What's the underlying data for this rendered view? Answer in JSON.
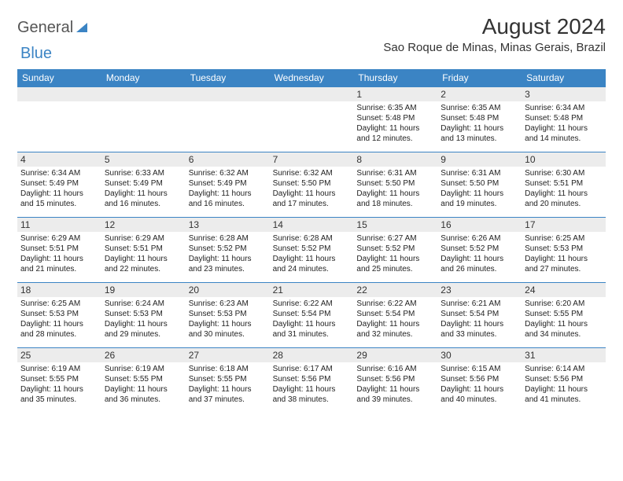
{
  "brand": {
    "word1": "General",
    "word2": "Blue"
  },
  "title": "August 2024",
  "subtitle": "Sao Roque de Minas, Minas Gerais, Brazil",
  "colors": {
    "accent": "#3b84c4",
    "daybg": "#ececec"
  },
  "weekdays": [
    "Sunday",
    "Monday",
    "Tuesday",
    "Wednesday",
    "Thursday",
    "Friday",
    "Saturday"
  ],
  "weeks": [
    [
      null,
      null,
      null,
      null,
      {
        "n": "1",
        "sr": "Sunrise: 6:35 AM",
        "ss": "Sunset: 5:48 PM",
        "d1": "Daylight: 11 hours",
        "d2": "and 12 minutes."
      },
      {
        "n": "2",
        "sr": "Sunrise: 6:35 AM",
        "ss": "Sunset: 5:48 PM",
        "d1": "Daylight: 11 hours",
        "d2": "and 13 minutes."
      },
      {
        "n": "3",
        "sr": "Sunrise: 6:34 AM",
        "ss": "Sunset: 5:48 PM",
        "d1": "Daylight: 11 hours",
        "d2": "and 14 minutes."
      }
    ],
    [
      {
        "n": "4",
        "sr": "Sunrise: 6:34 AM",
        "ss": "Sunset: 5:49 PM",
        "d1": "Daylight: 11 hours",
        "d2": "and 15 minutes."
      },
      {
        "n": "5",
        "sr": "Sunrise: 6:33 AM",
        "ss": "Sunset: 5:49 PM",
        "d1": "Daylight: 11 hours",
        "d2": "and 16 minutes."
      },
      {
        "n": "6",
        "sr": "Sunrise: 6:32 AM",
        "ss": "Sunset: 5:49 PM",
        "d1": "Daylight: 11 hours",
        "d2": "and 16 minutes."
      },
      {
        "n": "7",
        "sr": "Sunrise: 6:32 AM",
        "ss": "Sunset: 5:50 PM",
        "d1": "Daylight: 11 hours",
        "d2": "and 17 minutes."
      },
      {
        "n": "8",
        "sr": "Sunrise: 6:31 AM",
        "ss": "Sunset: 5:50 PM",
        "d1": "Daylight: 11 hours",
        "d2": "and 18 minutes."
      },
      {
        "n": "9",
        "sr": "Sunrise: 6:31 AM",
        "ss": "Sunset: 5:50 PM",
        "d1": "Daylight: 11 hours",
        "d2": "and 19 minutes."
      },
      {
        "n": "10",
        "sr": "Sunrise: 6:30 AM",
        "ss": "Sunset: 5:51 PM",
        "d1": "Daylight: 11 hours",
        "d2": "and 20 minutes."
      }
    ],
    [
      {
        "n": "11",
        "sr": "Sunrise: 6:29 AM",
        "ss": "Sunset: 5:51 PM",
        "d1": "Daylight: 11 hours",
        "d2": "and 21 minutes."
      },
      {
        "n": "12",
        "sr": "Sunrise: 6:29 AM",
        "ss": "Sunset: 5:51 PM",
        "d1": "Daylight: 11 hours",
        "d2": "and 22 minutes."
      },
      {
        "n": "13",
        "sr": "Sunrise: 6:28 AM",
        "ss": "Sunset: 5:52 PM",
        "d1": "Daylight: 11 hours",
        "d2": "and 23 minutes."
      },
      {
        "n": "14",
        "sr": "Sunrise: 6:28 AM",
        "ss": "Sunset: 5:52 PM",
        "d1": "Daylight: 11 hours",
        "d2": "and 24 minutes."
      },
      {
        "n": "15",
        "sr": "Sunrise: 6:27 AM",
        "ss": "Sunset: 5:52 PM",
        "d1": "Daylight: 11 hours",
        "d2": "and 25 minutes."
      },
      {
        "n": "16",
        "sr": "Sunrise: 6:26 AM",
        "ss": "Sunset: 5:52 PM",
        "d1": "Daylight: 11 hours",
        "d2": "and 26 minutes."
      },
      {
        "n": "17",
        "sr": "Sunrise: 6:25 AM",
        "ss": "Sunset: 5:53 PM",
        "d1": "Daylight: 11 hours",
        "d2": "and 27 minutes."
      }
    ],
    [
      {
        "n": "18",
        "sr": "Sunrise: 6:25 AM",
        "ss": "Sunset: 5:53 PM",
        "d1": "Daylight: 11 hours",
        "d2": "and 28 minutes."
      },
      {
        "n": "19",
        "sr": "Sunrise: 6:24 AM",
        "ss": "Sunset: 5:53 PM",
        "d1": "Daylight: 11 hours",
        "d2": "and 29 minutes."
      },
      {
        "n": "20",
        "sr": "Sunrise: 6:23 AM",
        "ss": "Sunset: 5:53 PM",
        "d1": "Daylight: 11 hours",
        "d2": "and 30 minutes."
      },
      {
        "n": "21",
        "sr": "Sunrise: 6:22 AM",
        "ss": "Sunset: 5:54 PM",
        "d1": "Daylight: 11 hours",
        "d2": "and 31 minutes."
      },
      {
        "n": "22",
        "sr": "Sunrise: 6:22 AM",
        "ss": "Sunset: 5:54 PM",
        "d1": "Daylight: 11 hours",
        "d2": "and 32 minutes."
      },
      {
        "n": "23",
        "sr": "Sunrise: 6:21 AM",
        "ss": "Sunset: 5:54 PM",
        "d1": "Daylight: 11 hours",
        "d2": "and 33 minutes."
      },
      {
        "n": "24",
        "sr": "Sunrise: 6:20 AM",
        "ss": "Sunset: 5:55 PM",
        "d1": "Daylight: 11 hours",
        "d2": "and 34 minutes."
      }
    ],
    [
      {
        "n": "25",
        "sr": "Sunrise: 6:19 AM",
        "ss": "Sunset: 5:55 PM",
        "d1": "Daylight: 11 hours",
        "d2": "and 35 minutes."
      },
      {
        "n": "26",
        "sr": "Sunrise: 6:19 AM",
        "ss": "Sunset: 5:55 PM",
        "d1": "Daylight: 11 hours",
        "d2": "and 36 minutes."
      },
      {
        "n": "27",
        "sr": "Sunrise: 6:18 AM",
        "ss": "Sunset: 5:55 PM",
        "d1": "Daylight: 11 hours",
        "d2": "and 37 minutes."
      },
      {
        "n": "28",
        "sr": "Sunrise: 6:17 AM",
        "ss": "Sunset: 5:56 PM",
        "d1": "Daylight: 11 hours",
        "d2": "and 38 minutes."
      },
      {
        "n": "29",
        "sr": "Sunrise: 6:16 AM",
        "ss": "Sunset: 5:56 PM",
        "d1": "Daylight: 11 hours",
        "d2": "and 39 minutes."
      },
      {
        "n": "30",
        "sr": "Sunrise: 6:15 AM",
        "ss": "Sunset: 5:56 PM",
        "d1": "Daylight: 11 hours",
        "d2": "and 40 minutes."
      },
      {
        "n": "31",
        "sr": "Sunrise: 6:14 AM",
        "ss": "Sunset: 5:56 PM",
        "d1": "Daylight: 11 hours",
        "d2": "and 41 minutes."
      }
    ]
  ]
}
